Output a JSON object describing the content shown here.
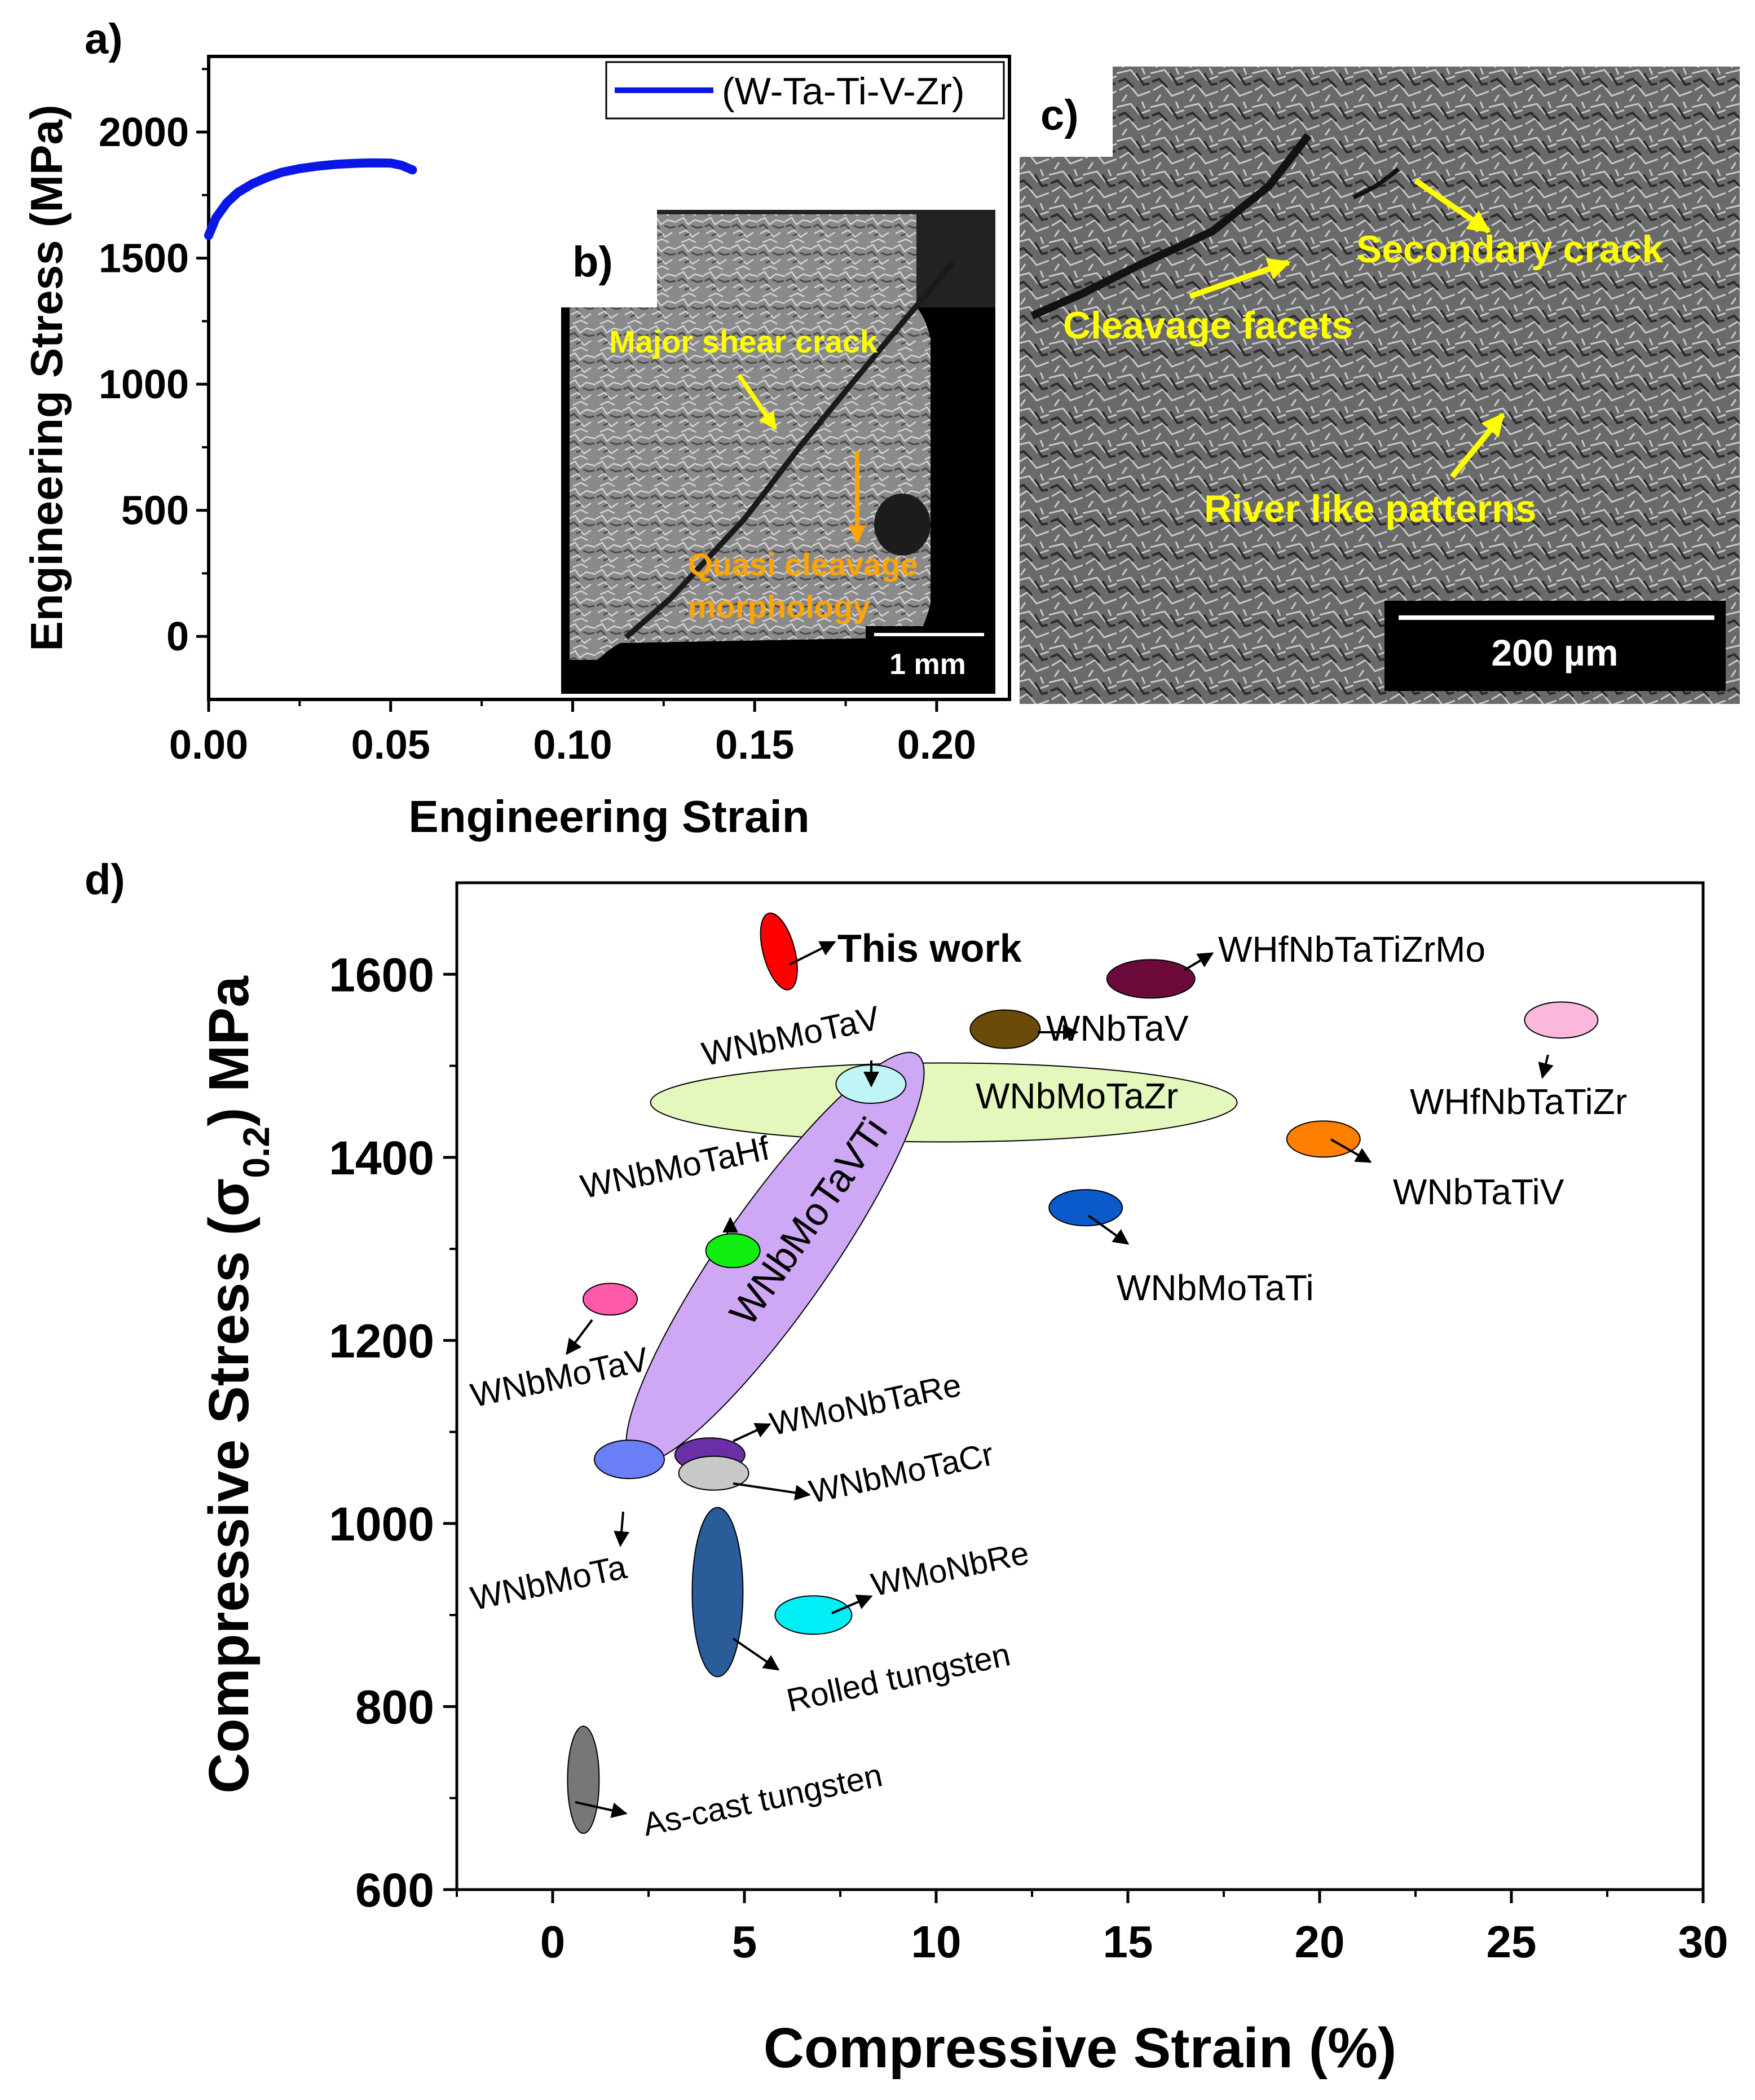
{
  "colors": {
    "axis": "#000000",
    "curve": "#0a17e6",
    "annotation_yellow": "#ffff00",
    "annotation_orange": "#ffa500",
    "sem_dark": "#3a3a3a",
    "sem_mid": "#777777"
  },
  "panels": {
    "a_label": "a)",
    "b_label": "b)",
    "c_label": "c)",
    "d_label": "d)"
  },
  "panel_b": {
    "annotations": [
      "Major shear crack",
      "Quasi cleavage",
      "morphology"
    ],
    "scale_bar": "1 mm"
  },
  "panel_c": {
    "annotations": [
      "Secondary crack",
      "Cleavage facets",
      "River like patterns"
    ],
    "scale_bar": "200 µm"
  },
  "chart_data": [
    {
      "type": "line",
      "panel": "a",
      "xlabel": "Engineering Strain",
      "ylabel": "Engineering Stress (MPa)",
      "xlim": [
        0.0,
        0.22
      ],
      "ylim": [
        -250,
        2300
      ],
      "xticks": [
        "0.00",
        "0.05",
        "0.10",
        "0.15",
        "0.20"
      ],
      "xtick_values": [
        0.0,
        0.05,
        0.1,
        0.15,
        0.2
      ],
      "yticks": [
        "0",
        "500",
        "1000",
        "1500",
        "2000"
      ],
      "ytick_values": [
        0,
        500,
        1000,
        1500,
        2000
      ],
      "legend": {
        "label": "(W-Ta-Ti-V-Zr)",
        "placement": "top-right"
      },
      "series": [
        {
          "name": "(W-Ta-Ti-V-Zr)",
          "x": [
            0.0,
            0.002,
            0.005,
            0.008,
            0.012,
            0.016,
            0.02,
            0.025,
            0.03,
            0.035,
            0.04,
            0.045,
            0.05,
            0.053,
            0.056
          ],
          "y": [
            1590,
            1660,
            1720,
            1760,
            1795,
            1820,
            1840,
            1855,
            1865,
            1872,
            1876,
            1878,
            1877,
            1868,
            1850
          ]
        }
      ]
    },
    {
      "type": "scatter",
      "panel": "d",
      "xlabel": "Compressive Strain (%)",
      "ylabel": "Compressive Stress (σ0.2) MPa",
      "xlim": [
        -2.5,
        30
      ],
      "ylim": [
        600,
        1700
      ],
      "xticks": [
        "0",
        "5",
        "10",
        "15",
        "20",
        "25",
        "30"
      ],
      "xtick_values": [
        0,
        5,
        10,
        15,
        20,
        25,
        30
      ],
      "yticks": [
        "600",
        "800",
        "1000",
        "1200",
        "1400",
        "1600"
      ],
      "ytick_values": [
        600,
        800,
        1000,
        1200,
        1400,
        1600
      ],
      "points": [
        {
          "name": "This work",
          "x": 5.9,
          "y": 1625,
          "color": "#ff0000",
          "bold": true
        },
        {
          "name": "WHfNbTaTiZrMo",
          "x": 15.6,
          "y": 1595,
          "color": "#6b0a3a"
        },
        {
          "name": "WNbTaV",
          "x": 11.8,
          "y": 1540,
          "color": "#6b4a0a"
        },
        {
          "name": "WHfNbTaTiZr",
          "x": 26.3,
          "y": 1550,
          "color": "#f9b8dc"
        },
        {
          "name": "WNbMoTaV",
          "x": 8.3,
          "y": 1480,
          "color": "#bff5f5"
        },
        {
          "name": "WNbMoTaZr",
          "x": 10.2,
          "y": 1460,
          "color": "#e4f7bc"
        },
        {
          "name": "WNbMoTaVTi",
          "x": 5.8,
          "y": 1290,
          "color": "#cfa8f5"
        },
        {
          "name": "WNbTaTiV",
          "x": 20.1,
          "y": 1420,
          "color": "#ff7f00"
        },
        {
          "name": "WNbMoTaHf",
          "x": 4.7,
          "y": 1298,
          "color": "#11ee11"
        },
        {
          "name": "WNbMoTaTi",
          "x": 13.9,
          "y": 1345,
          "color": "#0a5acb"
        },
        {
          "name": "WNbMoTaV",
          "x": 1.5,
          "y": 1245,
          "color": "#ff5aaa"
        },
        {
          "name": "WMoNbTaRe",
          "x": 4.1,
          "y": 1075,
          "color": "#6a2fa5"
        },
        {
          "name": "WNbMoTaCr",
          "x": 4.2,
          "y": 1055,
          "color": "#c8c8c8"
        },
        {
          "name": "WNbMoTa",
          "x": 2.0,
          "y": 1070,
          "color": "#6a7ff5"
        },
        {
          "name": "Rolled tungsten",
          "x": 4.3,
          "y": 925,
          "color": "#2a5c9a"
        },
        {
          "name": "WMoNbRe",
          "x": 6.8,
          "y": 900,
          "color": "#00eef5"
        },
        {
          "name": "As-cast tungsten",
          "x": 0.8,
          "y": 720,
          "color": "#777777"
        }
      ]
    }
  ]
}
